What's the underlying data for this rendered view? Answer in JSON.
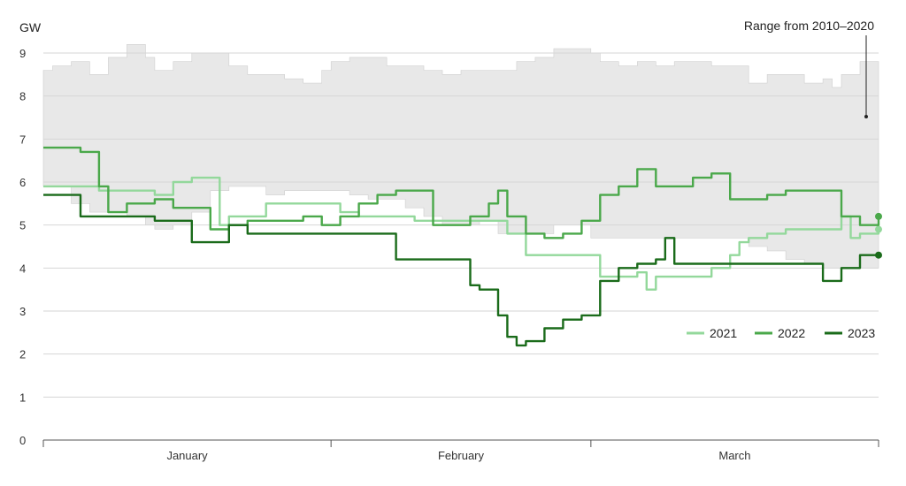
{
  "chart_data": {
    "type": "line",
    "ylabel": "GW",
    "ylim": [
      0,
      9
    ],
    "yticks": [
      "0",
      "1",
      "2",
      "3",
      "4",
      "5",
      "6",
      "7",
      "8",
      "9"
    ],
    "xlim": [
      0,
      90
    ],
    "months": [
      {
        "label": "January",
        "start": 0,
        "end": 31
      },
      {
        "label": "February",
        "start": 31,
        "end": 59
      },
      {
        "label": "March",
        "start": 59,
        "end": 90
      }
    ],
    "grid": true,
    "legend_position": "right",
    "range_annotation": "Range from 2010–2020",
    "range_band": {
      "name": "Range from 2010–2020",
      "color": "#e8e8e8",
      "x": [
        0,
        1,
        3,
        5,
        7,
        9,
        11,
        12,
        14,
        16,
        18,
        20,
        22,
        24,
        26,
        28,
        30,
        31,
        33,
        35,
        37,
        39,
        41,
        43,
        45,
        47,
        49,
        51,
        53,
        55,
        57,
        59,
        60,
        62,
        64,
        66,
        68,
        70,
        72,
        74,
        76,
        78,
        80,
        82,
        84,
        85,
        86,
        88,
        90
      ],
      "high": [
        8.6,
        8.7,
        8.8,
        8.5,
        8.9,
        9.2,
        8.9,
        8.6,
        8.8,
        9.0,
        9.0,
        8.7,
        8.5,
        8.5,
        8.4,
        8.3,
        8.6,
        8.8,
        8.9,
        8.9,
        8.7,
        8.7,
        8.6,
        8.5,
        8.6,
        8.6,
        8.6,
        8.8,
        8.9,
        9.1,
        9.1,
        9.0,
        8.8,
        8.7,
        8.8,
        8.7,
        8.8,
        8.8,
        8.7,
        8.7,
        8.3,
        8.5,
        8.5,
        8.3,
        8.4,
        8.2,
        8.5,
        8.8,
        8.8
      ],
      "low": [
        5.9,
        5.9,
        5.9,
        5.5,
        5.3,
        5.3,
        5.2,
        5.0,
        4.9,
        5.0,
        5.3,
        5.8,
        5.9,
        5.9,
        5.7,
        5.8,
        5.8,
        5.8,
        5.8,
        5.7,
        5.6,
        5.6,
        5.4,
        5.2,
        5.0,
        5.0,
        5.1,
        4.8,
        4.8,
        4.8,
        5.0,
        5.0,
        4.7,
        4.7,
        4.7,
        4.7,
        4.7,
        4.7,
        4.7,
        4.7,
        4.7,
        4.5,
        4.4,
        4.2,
        4.1,
        4.0,
        4.0,
        4.0,
        4.0
      ]
    },
    "series": [
      {
        "name": "2021",
        "color": "#93d89b",
        "x": [
          0,
          2,
          4,
          6,
          8,
          10,
          12,
          14,
          16,
          18,
          19,
          20,
          22,
          24,
          26,
          28,
          30,
          32,
          34,
          36,
          38,
          40,
          42,
          44,
          46,
          48,
          50,
          52,
          54,
          56,
          58,
          59,
          60,
          62,
          64,
          65,
          66,
          68,
          70,
          72,
          74,
          75,
          76,
          78,
          80,
          82,
          84,
          86,
          87,
          88,
          90
        ],
        "y": [
          5.9,
          5.9,
          5.9,
          5.8,
          5.8,
          5.8,
          5.7,
          6.0,
          6.1,
          6.1,
          5.0,
          5.2,
          5.2,
          5.5,
          5.5,
          5.5,
          5.5,
          5.3,
          5.2,
          5.2,
          5.2,
          5.1,
          5.1,
          5.1,
          5.1,
          5.1,
          4.8,
          4.3,
          4.3,
          4.3,
          4.3,
          4.3,
          3.8,
          3.8,
          3.9,
          3.5,
          3.8,
          3.8,
          3.8,
          4.0,
          4.3,
          4.6,
          4.7,
          4.8,
          4.9,
          4.9,
          4.9,
          5.2,
          4.7,
          4.8,
          4.9
        ]
      },
      {
        "name": "2022",
        "color": "#4aa84a",
        "x": [
          0,
          2,
          4,
          5,
          6,
          7,
          8,
          9,
          10,
          12,
          14,
          16,
          17,
          18,
          20,
          22,
          24,
          26,
          28,
          30,
          32,
          34,
          36,
          38,
          40,
          42,
          44,
          46,
          48,
          49,
          50,
          52,
          54,
          56,
          58,
          60,
          62,
          64,
          66,
          68,
          70,
          72,
          74,
          76,
          78,
          80,
          82,
          84,
          86,
          88,
          90
        ],
        "y": [
          6.8,
          6.8,
          6.7,
          6.7,
          5.9,
          5.3,
          5.3,
          5.5,
          5.5,
          5.6,
          5.4,
          5.4,
          5.4,
          4.9,
          5.0,
          5.1,
          5.1,
          5.1,
          5.2,
          5.0,
          5.2,
          5.5,
          5.7,
          5.8,
          5.8,
          5.0,
          5.0,
          5.2,
          5.5,
          5.8,
          5.2,
          4.8,
          4.7,
          4.8,
          5.1,
          5.7,
          5.9,
          6.3,
          5.9,
          5.9,
          6.1,
          6.2,
          5.6,
          5.6,
          5.7,
          5.8,
          5.8,
          5.8,
          5.2,
          5.0,
          5.2
        ]
      },
      {
        "name": "2023",
        "color": "#1a6b1a",
        "x": [
          0,
          2,
          4,
          6,
          8,
          10,
          12,
          14,
          16,
          18,
          20,
          22,
          24,
          26,
          28,
          30,
          32,
          34,
          36,
          38,
          40,
          42,
          44,
          46,
          47,
          48,
          49,
          50,
          51,
          52,
          54,
          56,
          58,
          60,
          62,
          64,
          66,
          67,
          68,
          70,
          72,
          74,
          76,
          78,
          80,
          82,
          84,
          86,
          88,
          89,
          90
        ],
        "y": [
          5.7,
          5.7,
          5.2,
          5.2,
          5.2,
          5.2,
          5.1,
          5.1,
          4.6,
          4.6,
          5.0,
          4.8,
          4.8,
          4.8,
          4.8,
          4.8,
          4.8,
          4.8,
          4.8,
          4.2,
          4.2,
          4.2,
          4.2,
          3.6,
          3.5,
          3.5,
          2.9,
          2.4,
          2.2,
          2.3,
          2.6,
          2.8,
          2.9,
          3.7,
          4.0,
          4.1,
          4.2,
          4.7,
          4.1,
          4.1,
          4.1,
          4.1,
          4.1,
          4.1,
          4.1,
          4.1,
          3.7,
          4.0,
          4.3,
          4.3,
          4.3
        ]
      }
    ]
  }
}
